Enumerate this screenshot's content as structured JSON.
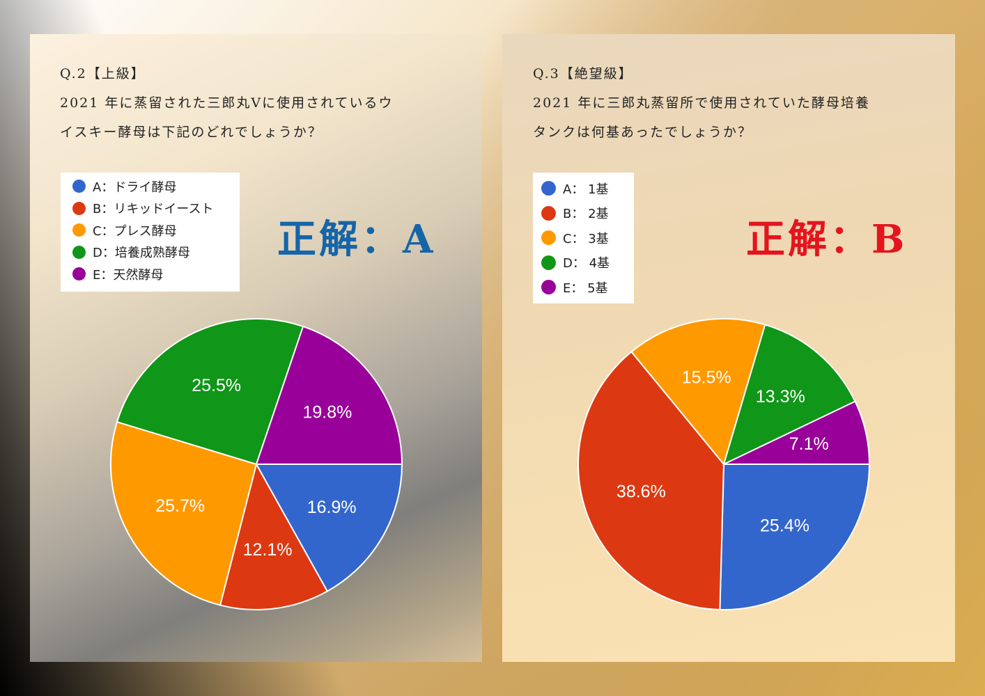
{
  "panels": [
    {
      "question": {
        "line1": "Q.2【上級】",
        "line2": "2021 年に蒸留された三郎丸Ⅴに使用されているウ",
        "line3": "イスキー酵母は下記のどれでしょうか？"
      },
      "answer": "正解：A",
      "answer_color": "#1565a8"
    },
    {
      "question": {
        "line1": " Q.3【絶望級】",
        "line2": "2021 年に三郎丸蒸留所で使用されていた酵母培養",
        "line3": "タンクは何基あったでしょうか？"
      },
      "answer": "正解：B",
      "answer_color": "#e4141e"
    }
  ],
  "chart_data": [
    {
      "type": "pie",
      "start_angle_deg": 90,
      "direction": "clockwise",
      "slices": [
        {
          "key": "A",
          "label": "A：ドライ酵母",
          "value": 16.9,
          "display": "16.9%",
          "color": "#3366cc"
        },
        {
          "key": "B",
          "label": "B：リキッドイースト",
          "value": 12.1,
          "display": "12.1%",
          "color": "#dc3912"
        },
        {
          "key": "C",
          "label": "C：プレス酵母",
          "value": 25.7,
          "display": "25.7%",
          "color": "#ff9900"
        },
        {
          "key": "D",
          "label": "D：培養成熟酵母",
          "value": 25.5,
          "display": "25.5%",
          "color": "#109618"
        },
        {
          "key": "E",
          "label": "E：天然酵母",
          "value": 19.8,
          "display": "19.8%",
          "color": "#990099"
        }
      ],
      "legend_position": "top-left"
    },
    {
      "type": "pie",
      "start_angle_deg": 90,
      "direction": "clockwise",
      "slices": [
        {
          "key": "A",
          "label": "A： 1基",
          "value": 25.4,
          "display": "25.4%",
          "color": "#3366cc"
        },
        {
          "key": "B",
          "label": "B： 2基",
          "value": 38.6,
          "display": "38.6%",
          "color": "#dc3912"
        },
        {
          "key": "C",
          "label": "C： 3基",
          "value": 15.5,
          "display": "15.5%",
          "color": "#ff9900"
        },
        {
          "key": "D",
          "label": "D： 4基",
          "value": 13.3,
          "display": "13.3%",
          "color": "#109618"
        },
        {
          "key": "E",
          "label": "E： 5基",
          "value": 7.1,
          "display": "7.1%",
          "color": "#990099"
        }
      ],
      "legend_position": "top-left"
    }
  ]
}
